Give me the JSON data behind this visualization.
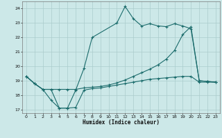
{
  "xlabel": "Humidex (Indice chaleur)",
  "bg_color": "#cce8e8",
  "grid_color": "#aacccc",
  "line_color": "#1a6b6b",
  "xlim": [
    -0.5,
    23.5
  ],
  "ylim": [
    16.75,
    24.5
  ],
  "yticks": [
    17,
    18,
    19,
    20,
    21,
    22,
    23,
    24
  ],
  "xticks": [
    0,
    1,
    2,
    3,
    4,
    5,
    6,
    7,
    8,
    9,
    10,
    11,
    12,
    13,
    14,
    15,
    16,
    17,
    18,
    19,
    20,
    21,
    22,
    23
  ],
  "line1_x": [
    0,
    1,
    2,
    3,
    4,
    5,
    6,
    7,
    8,
    11,
    12,
    13,
    14,
    15,
    16,
    17,
    18,
    19,
    20,
    21,
    22,
    23
  ],
  "line1_y": [
    19.3,
    18.8,
    18.4,
    17.65,
    17.1,
    17.1,
    18.35,
    19.85,
    22.0,
    23.0,
    24.15,
    23.3,
    22.8,
    22.95,
    22.8,
    22.75,
    22.95,
    22.8,
    22.6,
    19.0,
    18.95,
    18.9
  ],
  "line2_x": [
    0,
    1,
    2,
    3,
    4,
    5,
    6,
    7,
    8,
    9,
    10,
    11,
    12,
    13,
    14,
    15,
    16,
    17,
    18,
    19,
    20,
    21,
    22,
    23
  ],
  "line2_y": [
    19.3,
    18.8,
    18.4,
    18.4,
    18.4,
    18.4,
    18.4,
    18.5,
    18.55,
    18.6,
    18.7,
    18.85,
    19.05,
    19.3,
    19.55,
    19.8,
    20.1,
    20.5,
    21.1,
    22.2,
    22.75,
    19.0,
    18.95,
    18.9
  ],
  "line3_x": [
    0,
    1,
    2,
    3,
    4,
    5,
    6,
    7,
    8,
    9,
    10,
    11,
    12,
    13,
    14,
    15,
    16,
    17,
    18,
    19,
    20,
    21,
    22,
    23
  ],
  "line3_y": [
    19.3,
    18.8,
    18.4,
    18.4,
    17.1,
    17.1,
    17.15,
    18.35,
    18.45,
    18.5,
    18.6,
    18.7,
    18.8,
    18.9,
    19.0,
    19.1,
    19.15,
    19.2,
    19.25,
    19.3,
    19.3,
    18.9,
    18.9,
    18.9
  ]
}
